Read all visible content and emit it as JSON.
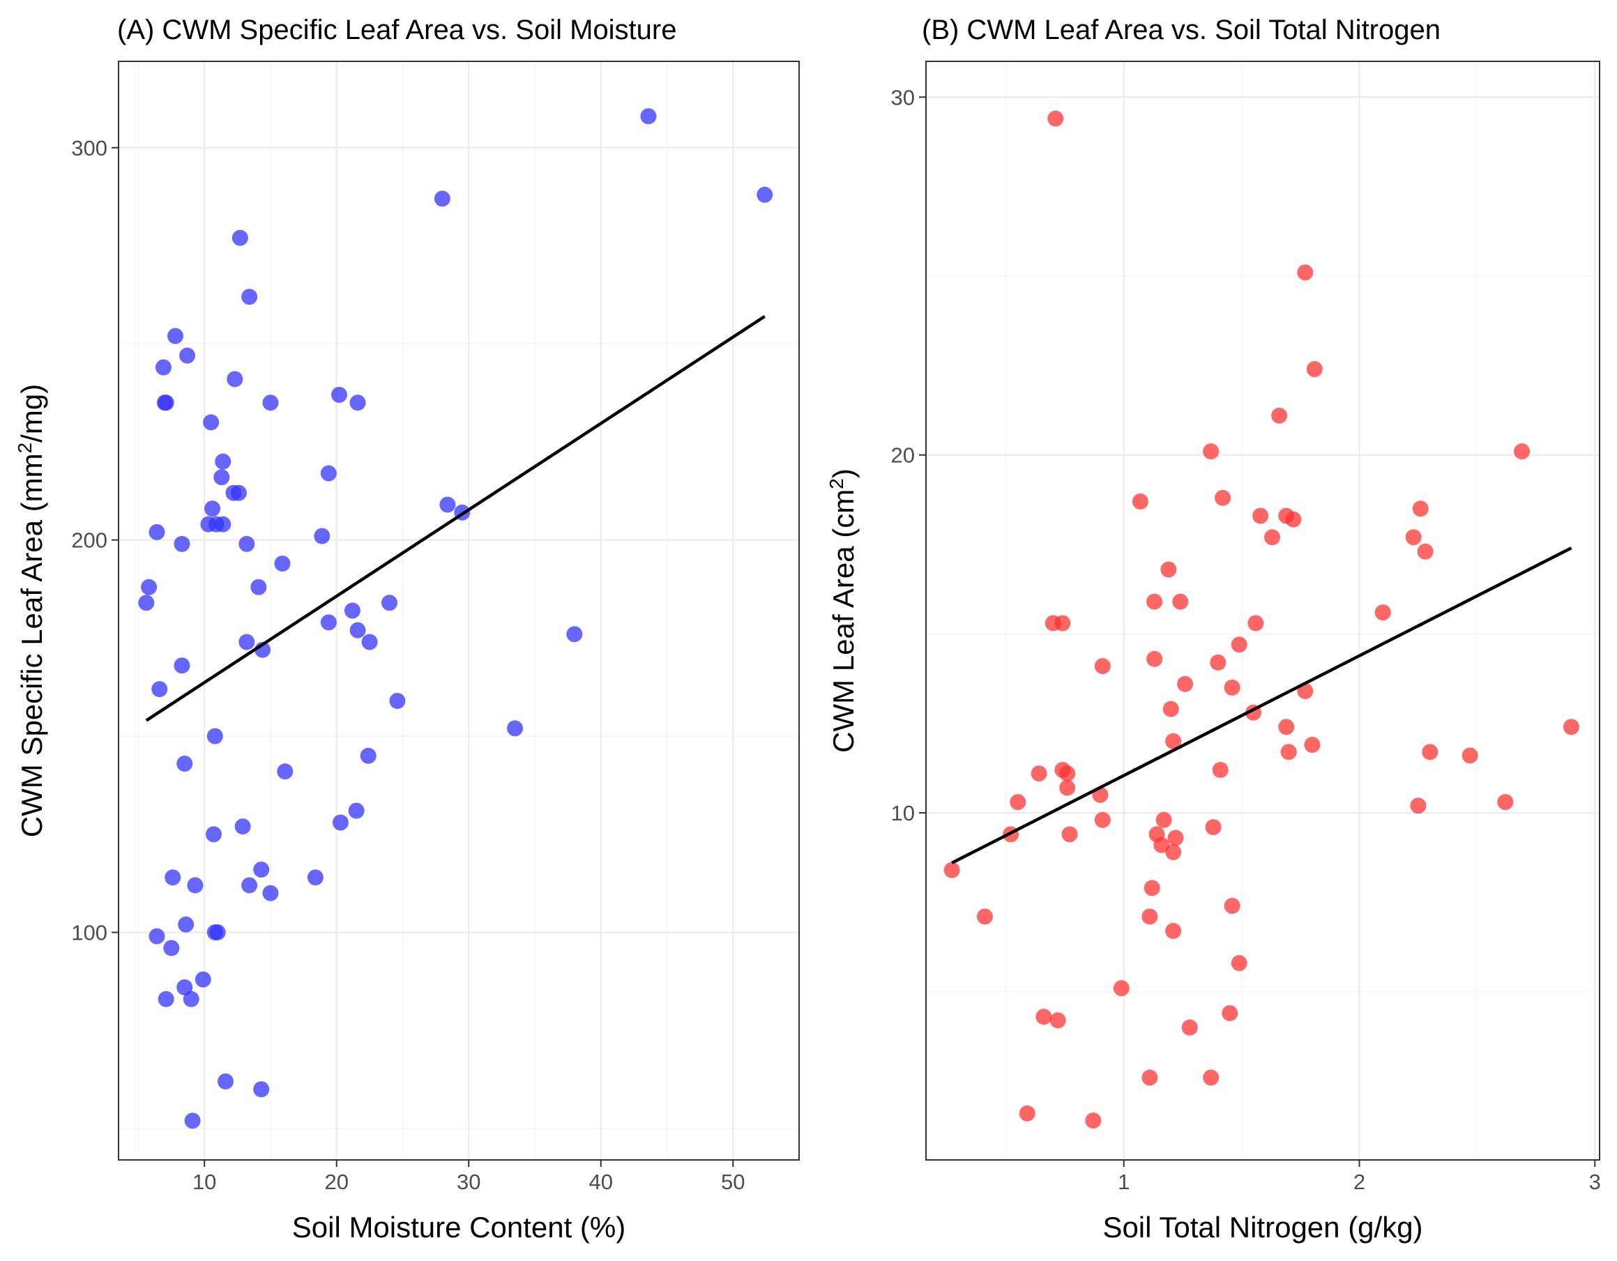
{
  "chart_data": [
    {
      "type": "scatter",
      "title": "(A) CWM Specific Leaf Area vs. Soil Moisture",
      "xlabel": "Soil Moisture Content (%)",
      "ylabel_main": "CWM Specific Leaf Area (mm",
      "ylabel_sup": "2",
      "ylabel_tail": "/mg)",
      "xlim": [
        3.5,
        55
      ],
      "ylim": [
        42,
        322
      ],
      "xticks": [
        10,
        20,
        30,
        40,
        50
      ],
      "yticks": [
        100,
        200,
        300
      ],
      "grid": true,
      "point_color": "#3333ff",
      "line_color": "#000000",
      "points": [
        [
          43.6,
          308
        ],
        [
          52.4,
          288
        ],
        [
          28.0,
          287
        ],
        [
          12.7,
          277
        ],
        [
          13.4,
          262
        ],
        [
          7.8,
          252
        ],
        [
          8.7,
          247
        ],
        [
          6.9,
          244
        ],
        [
          12.3,
          241
        ],
        [
          20.2,
          237
        ],
        [
          7.0,
          235
        ],
        [
          7.1,
          235
        ],
        [
          15.0,
          235
        ],
        [
          21.6,
          235
        ],
        [
          10.5,
          230
        ],
        [
          11.4,
          220
        ],
        [
          11.3,
          216
        ],
        [
          19.4,
          217
        ],
        [
          12.2,
          212
        ],
        [
          12.6,
          212
        ],
        [
          28.4,
          209
        ],
        [
          29.5,
          207
        ],
        [
          10.6,
          208
        ],
        [
          10.3,
          204
        ],
        [
          10.9,
          204
        ],
        [
          11.4,
          204
        ],
        [
          6.4,
          202
        ],
        [
          8.3,
          199
        ],
        [
          13.2,
          199
        ],
        [
          18.9,
          201
        ],
        [
          15.9,
          194
        ],
        [
          14.1,
          188
        ],
        [
          5.8,
          188
        ],
        [
          5.6,
          184
        ],
        [
          24.0,
          184
        ],
        [
          21.2,
          182
        ],
        [
          19.4,
          179
        ],
        [
          21.6,
          177
        ],
        [
          22.5,
          174
        ],
        [
          13.2,
          174
        ],
        [
          14.4,
          172
        ],
        [
          38.0,
          176
        ],
        [
          8.3,
          168
        ],
        [
          6.6,
          162
        ],
        [
          24.6,
          159
        ],
        [
          33.5,
          152
        ],
        [
          10.8,
          150
        ],
        [
          22.4,
          145
        ],
        [
          8.5,
          143
        ],
        [
          16.1,
          141
        ],
        [
          21.5,
          131
        ],
        [
          20.3,
          128
        ],
        [
          12.9,
          127
        ],
        [
          10.7,
          125
        ],
        [
          14.3,
          116
        ],
        [
          7.6,
          114
        ],
        [
          18.4,
          114
        ],
        [
          9.3,
          112
        ],
        [
          13.4,
          112
        ],
        [
          15.0,
          110
        ],
        [
          8.6,
          102
        ],
        [
          10.8,
          100
        ],
        [
          11.0,
          100
        ],
        [
          6.4,
          99
        ],
        [
          7.5,
          96
        ],
        [
          9.9,
          88
        ],
        [
          8.5,
          86
        ],
        [
          7.1,
          83
        ],
        [
          9.0,
          83
        ],
        [
          11.6,
          62
        ],
        [
          14.3,
          60
        ],
        [
          9.1,
          52
        ]
      ],
      "fit": {
        "x": [
          5.6,
          52.4
        ],
        "y": [
          154,
          257
        ]
      }
    },
    {
      "type": "scatter",
      "title": "(B) CWM Leaf Area vs. Soil Total Nitrogen",
      "xlabel": "Soil Total Nitrogen (g/kg)",
      "ylabel_main": "CWM Leaf Area (cm",
      "ylabel_sup": "2",
      "ylabel_tail": ")",
      "xlim": [
        0.16,
        3.02
      ],
      "ylim": [
        0.3,
        31
      ],
      "xticks": [
        1,
        2,
        3
      ],
      "yticks": [
        10,
        20,
        30
      ],
      "grid": true,
      "point_color": "#ff3333",
      "line_color": "#000000",
      "points": [
        [
          0.71,
          29.4
        ],
        [
          1.77,
          25.1
        ],
        [
          1.81,
          22.4
        ],
        [
          1.66,
          21.1
        ],
        [
          1.37,
          20.1
        ],
        [
          2.69,
          20.1
        ],
        [
          1.07,
          18.7
        ],
        [
          1.42,
          18.8
        ],
        [
          1.58,
          18.3
        ],
        [
          1.69,
          18.3
        ],
        [
          1.72,
          18.2
        ],
        [
          2.26,
          18.5
        ],
        [
          1.63,
          17.7
        ],
        [
          2.23,
          17.7
        ],
        [
          2.28,
          17.3
        ],
        [
          1.19,
          16.8
        ],
        [
          1.13,
          15.9
        ],
        [
          1.24,
          15.9
        ],
        [
          2.1,
          15.6
        ],
        [
          0.7,
          15.3
        ],
        [
          0.74,
          15.3
        ],
        [
          1.56,
          15.3
        ],
        [
          1.49,
          14.7
        ],
        [
          1.13,
          14.3
        ],
        [
          1.4,
          14.2
        ],
        [
          0.91,
          14.1
        ],
        [
          1.26,
          13.6
        ],
        [
          1.46,
          13.5
        ],
        [
          1.77,
          13.4
        ],
        [
          1.2,
          12.9
        ],
        [
          1.55,
          12.8
        ],
        [
          1.69,
          12.4
        ],
        [
          2.9,
          12.4
        ],
        [
          1.21,
          12.0
        ],
        [
          1.8,
          11.9
        ],
        [
          1.7,
          11.7
        ],
        [
          2.3,
          11.7
        ],
        [
          2.47,
          11.6
        ],
        [
          0.74,
          11.2
        ],
        [
          0.76,
          11.1
        ],
        [
          0.64,
          11.1
        ],
        [
          1.41,
          11.2
        ],
        [
          0.76,
          10.7
        ],
        [
          0.9,
          10.5
        ],
        [
          0.55,
          10.3
        ],
        [
          2.25,
          10.2
        ],
        [
          2.62,
          10.3
        ],
        [
          1.17,
          9.8
        ],
        [
          0.91,
          9.8
        ],
        [
          1.38,
          9.6
        ],
        [
          0.52,
          9.4
        ],
        [
          0.77,
          9.4
        ],
        [
          1.14,
          9.4
        ],
        [
          1.22,
          9.3
        ],
        [
          1.16,
          9.1
        ],
        [
          1.21,
          8.9
        ],
        [
          0.27,
          8.4
        ],
        [
          1.12,
          7.9
        ],
        [
          1.46,
          7.4
        ],
        [
          0.41,
          7.1
        ],
        [
          1.11,
          7.1
        ],
        [
          1.21,
          6.7
        ],
        [
          1.49,
          5.8
        ],
        [
          0.99,
          5.1
        ],
        [
          0.66,
          4.3
        ],
        [
          0.72,
          4.2
        ],
        [
          1.45,
          4.4
        ],
        [
          1.28,
          4.0
        ],
        [
          1.11,
          2.6
        ],
        [
          1.37,
          2.6
        ],
        [
          0.59,
          1.6
        ],
        [
          0.87,
          1.4
        ]
      ],
      "fit": {
        "x": [
          0.27,
          2.9
        ],
        "y": [
          8.6,
          17.4
        ]
      }
    }
  ]
}
